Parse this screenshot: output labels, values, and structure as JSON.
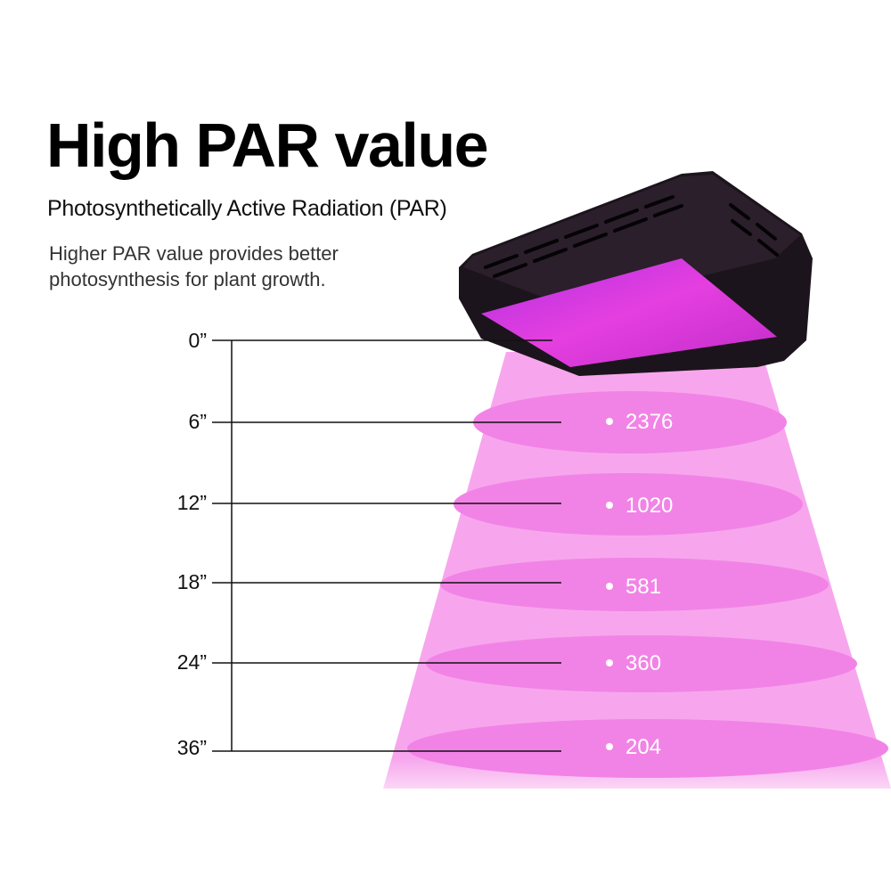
{
  "title": "High PAR value",
  "subtitle": "Photosynthetically Active Radiation (PAR)",
  "description": [
    "Higher PAR value provides better",
    "photosynthesis for plant growth."
  ],
  "colors": {
    "beam": "#f7a8ee",
    "ring": "#f27fe6",
    "led": "#e040e8",
    "body": "#1c141c"
  },
  "measurements": [
    {
      "distance": "0”",
      "par": ""
    },
    {
      "distance": "6”",
      "par": "2376"
    },
    {
      "distance": "12”",
      "par": "1020"
    },
    {
      "distance": "18”",
      "par": "581"
    },
    {
      "distance": "24”",
      "par": "360"
    },
    {
      "distance": "36”",
      "par": "204"
    }
  ]
}
